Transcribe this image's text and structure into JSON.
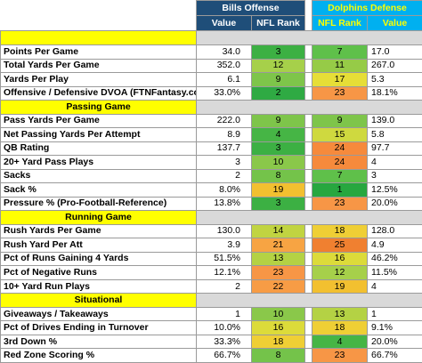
{
  "header": {
    "bills_group": "Bills Offense",
    "dolphins_group": "Dolphins Defense",
    "bills_value": "Value",
    "bills_rank": "NFL Rank",
    "dolphins_rank": "NFL Rank",
    "dolphins_value": "Value"
  },
  "colors": {
    "bills_header": "#1f4e79",
    "dolphins_header": "#00b0f0",
    "section_yellow": "#ffff00",
    "gray": "#d9d9d9"
  },
  "groups": [
    {
      "title": "",
      "rows": [
        {
          "label": "Points Per Game",
          "bv": "34.0",
          "br": "3",
          "bc": "#3cb043",
          "dr": "7",
          "dc": "#5fc04a",
          "dv": "17.0"
        },
        {
          "label": "Total Yards Per Game",
          "bv": "352.0",
          "br": "12",
          "bc": "#a6d04a",
          "dr": "11",
          "dc": "#96cb47",
          "dv": "267.0"
        },
        {
          "label": "Yards Per Play",
          "bv": "6.1",
          "br": "9",
          "bc": "#7ec54a",
          "dr": "17",
          "dc": "#e6de37",
          "dv": "5.3"
        },
        {
          "label": "Offensive / Defensive DVOA (FTNFantasy.com)",
          "bv": "33.0%",
          "br": "2",
          "bc": "#2faa43",
          "dr": "23",
          "dc": "#f79646",
          "dv": "18.1%"
        }
      ]
    },
    {
      "title": "Passing Game",
      "rows": [
        {
          "label": "Pass Yards Per Game",
          "bv": "222.0",
          "br": "9",
          "bc": "#7ec54a",
          "dr": "9",
          "dc": "#7ec54a",
          "dv": "139.0"
        },
        {
          "label": "Net Passing Yards Per Attempt",
          "bv": "8.9",
          "br": "4",
          "bc": "#46b545",
          "dr": "15",
          "dc": "#cfd93f",
          "dv": "5.8"
        },
        {
          "label": "QB Rating",
          "bv": "137.7",
          "br": "3",
          "bc": "#3cb043",
          "dr": "24",
          "dc": "#f68a3c",
          "dv": "97.7"
        },
        {
          "label": "20+ Yard Pass Plays",
          "bv": "3",
          "br": "10",
          "bc": "#8ac84a",
          "dr": "24",
          "dc": "#f68a3c",
          "dv": "4"
        },
        {
          "label": "Sacks",
          "bv": "2",
          "br": "8",
          "bc": "#74c34a",
          "dr": "7",
          "dc": "#5fc04a",
          "dv": "3"
        },
        {
          "label": "Sack %",
          "bv": "8.0%",
          "br": "19",
          "bc": "#f2c030",
          "dr": "1",
          "dc": "#27a73f",
          "dv": "12.5%"
        },
        {
          "label": "Pressure % (Pro-Football-Reference)",
          "bv": "13.8%",
          "br": "3",
          "bc": "#3cb043",
          "dr": "23",
          "dc": "#f79646",
          "dv": "20.0%"
        }
      ]
    },
    {
      "title": "Running Game",
      "rows": [
        {
          "label": "Rush Yards Per Game",
          "bv": "130.0",
          "br": "14",
          "bc": "#c1d441",
          "dr": "18",
          "dc": "#efcf35",
          "dv": "128.0"
        },
        {
          "label": "Rush Yard Per Att",
          "bv": "3.9",
          "br": "21",
          "bc": "#f7a443",
          "dr": "25",
          "dc": "#f08030",
          "dv": "4.9"
        },
        {
          "label": "Pct of Runs Gaining 4 Yards",
          "bv": "51.5%",
          "br": "13",
          "bc": "#b4d244",
          "dr": "16",
          "dc": "#dcdb3a",
          "dv": "46.2%"
        },
        {
          "label": "Pct of Negative Runs",
          "bv": "12.1%",
          "br": "23",
          "bc": "#f79646",
          "dr": "12",
          "dc": "#a6d04a",
          "dv": "11.5%"
        },
        {
          "label": "10+ Yard Run Plays",
          "bv": "2",
          "br": "22",
          "bc": "#f79c45",
          "dr": "19",
          "dc": "#f2c030",
          "dv": "4"
        }
      ]
    },
    {
      "title": "Situational",
      "rows": [
        {
          "label": "Giveaways / Takeaways",
          "bv": "1",
          "br": "10",
          "bc": "#8ac84a",
          "dr": "13",
          "dc": "#b4d244",
          "dv": "1"
        },
        {
          "label": "Pct of Drives Ending in Turnover",
          "bv": "10.0%",
          "br": "16",
          "bc": "#dcdb3a",
          "dr": "18",
          "dc": "#efcf35",
          "dv": "9.1%"
        },
        {
          "label": "3rd Down %",
          "bv": "33.3%",
          "br": "18",
          "bc": "#efcf35",
          "dr": "4",
          "dc": "#46b545",
          "dv": "20.0%"
        },
        {
          "label": "Red Zone Scoring %",
          "bv": "66.7%",
          "br": "8",
          "bc": "#74c34a",
          "dr": "23",
          "dc": "#f79646",
          "dv": "66.7%"
        }
      ]
    }
  ]
}
